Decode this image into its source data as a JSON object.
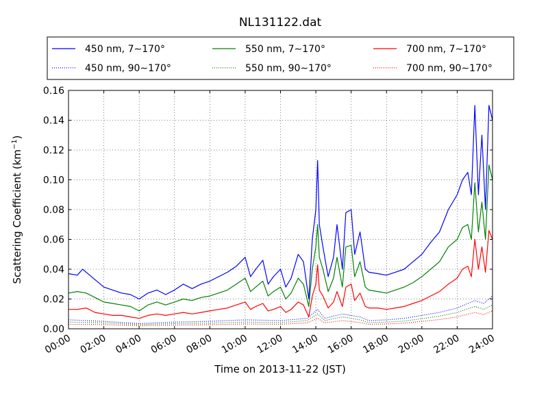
{
  "chart_data": {
    "type": "line",
    "title": "NL131122.dat",
    "xlabel": "Time on 2013-11-22 (JST)",
    "ylabel_main": "Scattering Coefficient (km",
    "ylabel_sup": "−1",
    "ylabel_tail": ")",
    "x_tick_labels": [
      "00:00",
      "02:00",
      "04:00",
      "06:00",
      "08:00",
      "10:00",
      "12:00",
      "14:00",
      "16:00",
      "18:00",
      "20:00",
      "22:00",
      "24:00"
    ],
    "x_range_hours": [
      0,
      24
    ],
    "y_tick_labels": [
      "0.00",
      "0.02",
      "0.04",
      "0.06",
      "0.08",
      "0.10",
      "0.12",
      "0.14",
      "0.16"
    ],
    "ylim": [
      0,
      0.16
    ],
    "grid": true,
    "legend_placement": "above plot",
    "series": [
      {
        "name": "450 nm, 7∼170°",
        "color": "#0000ff",
        "style": "solid",
        "points": [
          [
            0,
            0.037
          ],
          [
            0.5,
            0.036
          ],
          [
            0.8,
            0.04
          ],
          [
            1.2,
            0.036
          ],
          [
            1.6,
            0.032
          ],
          [
            2,
            0.028
          ],
          [
            2.5,
            0.026
          ],
          [
            3,
            0.024
          ],
          [
            3.5,
            0.023
          ],
          [
            4,
            0.02
          ],
          [
            4.5,
            0.024
          ],
          [
            5,
            0.026
          ],
          [
            5.5,
            0.023
          ],
          [
            6,
            0.026
          ],
          [
            6.5,
            0.03
          ],
          [
            7,
            0.027
          ],
          [
            7.5,
            0.03
          ],
          [
            8,
            0.032
          ],
          [
            8.5,
            0.035
          ],
          [
            9,
            0.038
          ],
          [
            9.5,
            0.042
          ],
          [
            10,
            0.048
          ],
          [
            10.3,
            0.035
          ],
          [
            10.6,
            0.04
          ],
          [
            11,
            0.046
          ],
          [
            11.3,
            0.03
          ],
          [
            11.6,
            0.035
          ],
          [
            12,
            0.04
          ],
          [
            12.3,
            0.028
          ],
          [
            12.6,
            0.034
          ],
          [
            13,
            0.05
          ],
          [
            13.3,
            0.045
          ],
          [
            13.6,
            0.02
          ],
          [
            13.8,
            0.06
          ],
          [
            14.0,
            0.08
          ],
          [
            14.1,
            0.113
          ],
          [
            14.2,
            0.07
          ],
          [
            14.4,
            0.055
          ],
          [
            14.7,
            0.035
          ],
          [
            15,
            0.048
          ],
          [
            15.2,
            0.07
          ],
          [
            15.5,
            0.04
          ],
          [
            15.7,
            0.078
          ],
          [
            16,
            0.08
          ],
          [
            16.2,
            0.05
          ],
          [
            16.5,
            0.065
          ],
          [
            16.8,
            0.04
          ],
          [
            17,
            0.038
          ],
          [
            17.5,
            0.037
          ],
          [
            18,
            0.036
          ],
          [
            18.5,
            0.038
          ],
          [
            19,
            0.04
          ],
          [
            19.5,
            0.045
          ],
          [
            20,
            0.05
          ],
          [
            20.5,
            0.058
          ],
          [
            21,
            0.065
          ],
          [
            21.5,
            0.08
          ],
          [
            22,
            0.09
          ],
          [
            22.3,
            0.1
          ],
          [
            22.6,
            0.105
          ],
          [
            22.8,
            0.09
          ],
          [
            23,
            0.15
          ],
          [
            23.2,
            0.09
          ],
          [
            23.4,
            0.13
          ],
          [
            23.6,
            0.08
          ],
          [
            23.8,
            0.15
          ],
          [
            24,
            0.14
          ]
        ]
      },
      {
        "name": "550 nm, 7∼170°",
        "color": "#008000",
        "style": "solid",
        "points": [
          [
            0,
            0.024
          ],
          [
            0.5,
            0.025
          ],
          [
            1,
            0.024
          ],
          [
            1.5,
            0.021
          ],
          [
            2,
            0.018
          ],
          [
            2.5,
            0.017
          ],
          [
            3,
            0.016
          ],
          [
            3.5,
            0.015
          ],
          [
            4,
            0.012
          ],
          [
            4.5,
            0.016
          ],
          [
            5,
            0.018
          ],
          [
            5.5,
            0.016
          ],
          [
            6,
            0.018
          ],
          [
            6.5,
            0.02
          ],
          [
            7,
            0.019
          ],
          [
            7.5,
            0.021
          ],
          [
            8,
            0.022
          ],
          [
            8.5,
            0.024
          ],
          [
            9,
            0.026
          ],
          [
            9.5,
            0.03
          ],
          [
            10,
            0.034
          ],
          [
            10.3,
            0.025
          ],
          [
            10.6,
            0.028
          ],
          [
            11,
            0.032
          ],
          [
            11.3,
            0.022
          ],
          [
            11.6,
            0.025
          ],
          [
            12,
            0.028
          ],
          [
            12.3,
            0.02
          ],
          [
            12.6,
            0.024
          ],
          [
            13,
            0.034
          ],
          [
            13.3,
            0.03
          ],
          [
            13.6,
            0.015
          ],
          [
            13.8,
            0.04
          ],
          [
            14.0,
            0.055
          ],
          [
            14.1,
            0.07
          ],
          [
            14.2,
            0.048
          ],
          [
            14.4,
            0.04
          ],
          [
            14.7,
            0.025
          ],
          [
            15,
            0.034
          ],
          [
            15.2,
            0.048
          ],
          [
            15.5,
            0.028
          ],
          [
            15.7,
            0.055
          ],
          [
            16,
            0.056
          ],
          [
            16.2,
            0.035
          ],
          [
            16.5,
            0.045
          ],
          [
            16.8,
            0.028
          ],
          [
            17,
            0.026
          ],
          [
            17.5,
            0.025
          ],
          [
            18,
            0.024
          ],
          [
            18.5,
            0.026
          ],
          [
            19,
            0.028
          ],
          [
            19.5,
            0.031
          ],
          [
            20,
            0.035
          ],
          [
            20.5,
            0.04
          ],
          [
            21,
            0.045
          ],
          [
            21.5,
            0.055
          ],
          [
            22,
            0.06
          ],
          [
            22.3,
            0.068
          ],
          [
            22.6,
            0.07
          ],
          [
            22.8,
            0.06
          ],
          [
            23,
            0.098
          ],
          [
            23.2,
            0.065
          ],
          [
            23.4,
            0.085
          ],
          [
            23.6,
            0.06
          ],
          [
            23.8,
            0.11
          ],
          [
            24,
            0.1
          ]
        ]
      },
      {
        "name": "700 nm, 7∼170°",
        "color": "#ff0000",
        "style": "solid",
        "points": [
          [
            0,
            0.013
          ],
          [
            0.5,
            0.013
          ],
          [
            1,
            0.014
          ],
          [
            1.5,
            0.011
          ],
          [
            2,
            0.01
          ],
          [
            2.5,
            0.009
          ],
          [
            3,
            0.009
          ],
          [
            3.5,
            0.008
          ],
          [
            4,
            0.007
          ],
          [
            4.5,
            0.009
          ],
          [
            5,
            0.01
          ],
          [
            5.5,
            0.009
          ],
          [
            6,
            0.01
          ],
          [
            6.5,
            0.011
          ],
          [
            7,
            0.01
          ],
          [
            7.5,
            0.011
          ],
          [
            8,
            0.012
          ],
          [
            8.5,
            0.013
          ],
          [
            9,
            0.014
          ],
          [
            9.5,
            0.016
          ],
          [
            10,
            0.018
          ],
          [
            10.3,
            0.013
          ],
          [
            10.6,
            0.015
          ],
          [
            11,
            0.017
          ],
          [
            11.3,
            0.012
          ],
          [
            11.6,
            0.013
          ],
          [
            12,
            0.015
          ],
          [
            12.3,
            0.011
          ],
          [
            12.6,
            0.013
          ],
          [
            13,
            0.018
          ],
          [
            13.3,
            0.016
          ],
          [
            13.6,
            0.008
          ],
          [
            13.8,
            0.022
          ],
          [
            14.0,
            0.03
          ],
          [
            14.1,
            0.043
          ],
          [
            14.2,
            0.026
          ],
          [
            14.4,
            0.022
          ],
          [
            14.7,
            0.014
          ],
          [
            15,
            0.018
          ],
          [
            15.2,
            0.025
          ],
          [
            15.5,
            0.015
          ],
          [
            15.7,
            0.028
          ],
          [
            16,
            0.03
          ],
          [
            16.2,
            0.019
          ],
          [
            16.5,
            0.024
          ],
          [
            16.8,
            0.015
          ],
          [
            17,
            0.014
          ],
          [
            17.5,
            0.014
          ],
          [
            18,
            0.013
          ],
          [
            18.5,
            0.014
          ],
          [
            19,
            0.015
          ],
          [
            19.5,
            0.017
          ],
          [
            20,
            0.019
          ],
          [
            20.5,
            0.022
          ],
          [
            21,
            0.025
          ],
          [
            21.5,
            0.03
          ],
          [
            22,
            0.034
          ],
          [
            22.3,
            0.04
          ],
          [
            22.6,
            0.042
          ],
          [
            22.8,
            0.035
          ],
          [
            23,
            0.06
          ],
          [
            23.2,
            0.04
          ],
          [
            23.4,
            0.055
          ],
          [
            23.6,
            0.038
          ],
          [
            23.8,
            0.066
          ],
          [
            24,
            0.06
          ]
        ]
      },
      {
        "name": "450 nm, 90∼170°",
        "color": "#0000ff",
        "style": "dotted",
        "points": [
          [
            0,
            0.006
          ],
          [
            2,
            0.005
          ],
          [
            4,
            0.0035
          ],
          [
            6,
            0.0045
          ],
          [
            8,
            0.005
          ],
          [
            10,
            0.006
          ],
          [
            12,
            0.0055
          ],
          [
            13.5,
            0.007
          ],
          [
            14.1,
            0.013
          ],
          [
            14.5,
            0.007
          ],
          [
            15.5,
            0.01
          ],
          [
            16.5,
            0.008
          ],
          [
            17,
            0.0055
          ],
          [
            18,
            0.006
          ],
          [
            19,
            0.007
          ],
          [
            20,
            0.009
          ],
          [
            21,
            0.011
          ],
          [
            22,
            0.014
          ],
          [
            23,
            0.019
          ],
          [
            23.5,
            0.017
          ],
          [
            24,
            0.022
          ]
        ]
      },
      {
        "name": "550 nm, 90∼170°",
        "color": "#008000",
        "style": "dotted",
        "points": [
          [
            0,
            0.0045
          ],
          [
            2,
            0.004
          ],
          [
            4,
            0.0028
          ],
          [
            6,
            0.0035
          ],
          [
            8,
            0.0038
          ],
          [
            10,
            0.0045
          ],
          [
            12,
            0.0042
          ],
          [
            13.5,
            0.0055
          ],
          [
            14.1,
            0.01
          ],
          [
            14.5,
            0.0055
          ],
          [
            15.5,
            0.008
          ],
          [
            16.5,
            0.006
          ],
          [
            17,
            0.0042
          ],
          [
            18,
            0.0045
          ],
          [
            19,
            0.0052
          ],
          [
            20,
            0.0068
          ],
          [
            21,
            0.0085
          ],
          [
            22,
            0.011
          ],
          [
            23,
            0.015
          ],
          [
            23.5,
            0.013
          ],
          [
            24,
            0.016
          ]
        ]
      },
      {
        "name": "700 nm, 90∼170°",
        "color": "#ff0000",
        "style": "dotted",
        "points": [
          [
            0,
            0.003
          ],
          [
            2,
            0.0028
          ],
          [
            4,
            0.002
          ],
          [
            6,
            0.0025
          ],
          [
            8,
            0.0027
          ],
          [
            10,
            0.0032
          ],
          [
            12,
            0.003
          ],
          [
            13.5,
            0.004
          ],
          [
            14.1,
            0.007
          ],
          [
            14.5,
            0.004
          ],
          [
            15.5,
            0.0055
          ],
          [
            16.5,
            0.0042
          ],
          [
            17,
            0.003
          ],
          [
            18,
            0.0032
          ],
          [
            19,
            0.0038
          ],
          [
            20,
            0.005
          ],
          [
            21,
            0.0062
          ],
          [
            22,
            0.008
          ],
          [
            23,
            0.011
          ],
          [
            23.5,
            0.0095
          ],
          [
            24,
            0.012
          ]
        ]
      }
    ]
  }
}
